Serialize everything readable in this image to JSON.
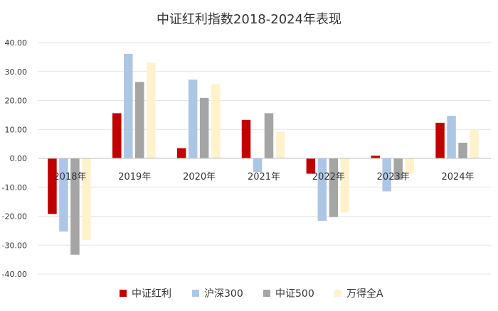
{
  "chart_data": {
    "type": "bar",
    "title": "中证红利指数2018-2024年表现",
    "categories": [
      "2018年",
      "2019年",
      "2020年",
      "2021年",
      "2022年",
      "2023年",
      "2024年"
    ],
    "series": [
      {
        "name": "中证红利",
        "color": "#C00000",
        "values": [
          -19.2,
          15.6,
          3.5,
          13.3,
          -5.3,
          0.9,
          12.3
        ]
      },
      {
        "name": "沪深300",
        "color": "#AEC6E6",
        "values": [
          -25.3,
          36.1,
          27.2,
          -4.7,
          -21.6,
          -11.4,
          14.7
        ]
      },
      {
        "name": "中证500",
        "color": "#A5A5A5",
        "values": [
          -33.3,
          26.4,
          20.9,
          15.6,
          -20.3,
          -7.4,
          5.4
        ]
      },
      {
        "name": "万得全A",
        "color": "#FFF2CC",
        "values": [
          -28.3,
          33.0,
          25.6,
          9.2,
          -18.7,
          -5.2,
          10.0
        ]
      }
    ],
    "yticks": [
      "40.00",
      "30.00",
      "20.00",
      "10.00",
      "0.00",
      "-10.00",
      "-20.00",
      "-30.00",
      "-40.00"
    ],
    "ylim": [
      -40,
      40
    ],
    "grid": true,
    "legend": "bottom"
  }
}
